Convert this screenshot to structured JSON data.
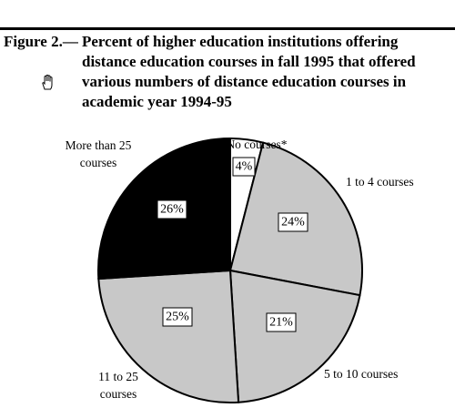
{
  "figure": {
    "label": "Figure 2.—",
    "title_lines": [
      "Percent of higher education institutions offering",
      "distance education courses in fall 1995 that offered",
      "various numbers of distance education courses in",
      "academic year 1994-95"
    ]
  },
  "icons": {
    "cursor": "hand-pointer-icon"
  },
  "chart_data": {
    "type": "pie",
    "title": "Percent of higher education institutions offering distance education courses in fall 1995 that offered various numbers of distance education courses in academic year 1994-95",
    "start_angle_deg": 0,
    "direction": "clockwise",
    "slices": [
      {
        "label": "No courses*",
        "value": 4,
        "value_label": "4%",
        "color": "#ffffff",
        "text_lines": [
          "No courses*"
        ]
      },
      {
        "label": "1 to 4 courses",
        "value": 24,
        "value_label": "24%",
        "color": "#c8c8c8",
        "text_lines": [
          "1 to 4 courses"
        ]
      },
      {
        "label": "5 to 10 courses",
        "value": 21,
        "value_label": "21%",
        "color": "#c8c8c8",
        "text_lines": [
          "5 to 10 courses"
        ]
      },
      {
        "label": "11 to 25 courses",
        "value": 25,
        "value_label": "25%",
        "color": "#c8c8c8",
        "text_lines": [
          "11 to 25",
          "courses"
        ]
      },
      {
        "label": "More than 25 courses",
        "value": 26,
        "value_label": "26%",
        "color": "#000000",
        "text_lines": [
          "More than 25",
          "courses"
        ]
      }
    ]
  }
}
